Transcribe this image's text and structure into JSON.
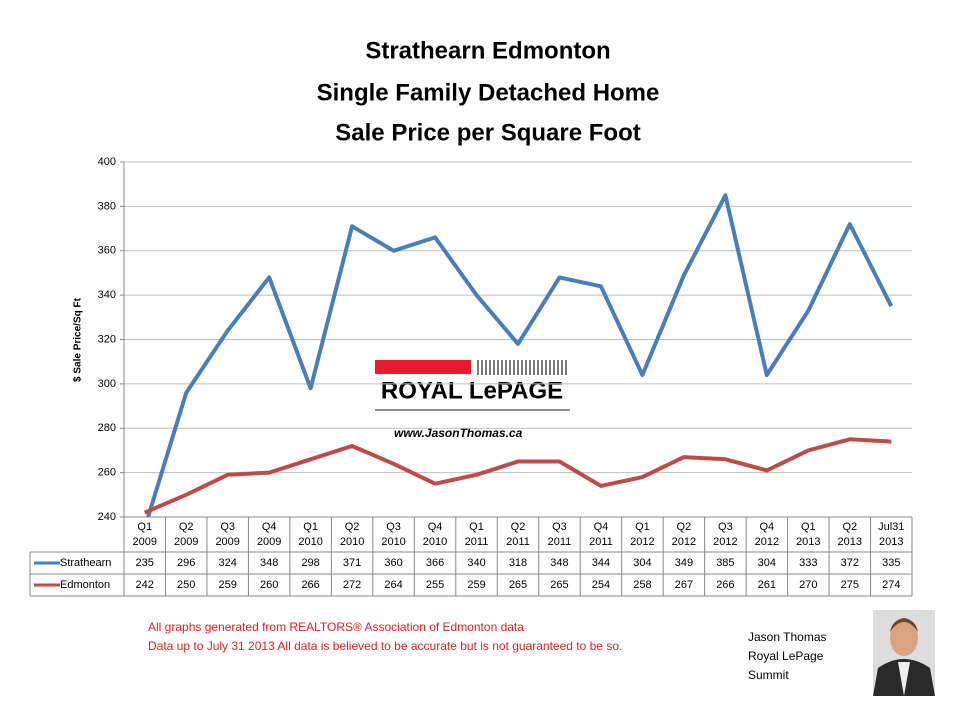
{
  "chart_data": {
    "type": "line",
    "title": [
      "Strathearn Edmonton",
      "Single Family Detached Home",
      "Sale Price per Square Foot"
    ],
    "y_label": "$ Sale Price/Sq Ft",
    "categories": [
      [
        "Q1",
        "2009"
      ],
      [
        "Q2",
        "2009"
      ],
      [
        "Q3",
        "2009"
      ],
      [
        "Q4",
        "2009"
      ],
      [
        "Q1",
        "2010"
      ],
      [
        "Q2",
        "2010"
      ],
      [
        "Q3",
        "2010"
      ],
      [
        "Q4",
        "2010"
      ],
      [
        "Q1",
        "2011"
      ],
      [
        "Q2",
        "2011"
      ],
      [
        "Q3",
        "2011"
      ],
      [
        "Q4",
        "2011"
      ],
      [
        "Q1",
        "2012"
      ],
      [
        "Q2",
        "2012"
      ],
      [
        "Q3",
        "2012"
      ],
      [
        "Q4",
        "2012"
      ],
      [
        "Q1",
        "2013"
      ],
      [
        "Q2",
        "2013"
      ],
      [
        "Jul31",
        "2013"
      ]
    ],
    "series": [
      {
        "name": "Strathearn",
        "color": "#4a7ebb",
        "values": [
          235,
          296,
          324,
          348,
          298,
          371,
          360,
          366,
          340,
          318,
          348,
          344,
          304,
          349,
          385,
          304,
          333,
          372,
          335
        ]
      },
      {
        "name": "Edmonton",
        "color": "#be4b48",
        "values": [
          242,
          250,
          259,
          260,
          266,
          272,
          264,
          255,
          259,
          265,
          265,
          254,
          258,
          267,
          266,
          261,
          270,
          275,
          274
        ]
      }
    ],
    "ylim": [
      240,
      400
    ],
    "yticks": [
      240,
      260,
      280,
      300,
      320,
      340,
      360,
      380,
      400
    ],
    "grid": true,
    "watermark": {
      "brand": "ROYAL LePAGE",
      "url": "www.JasonThomas.ca"
    },
    "notes": [
      "All graphs generated from REALTORS® Association of Edmonton data",
      "Data up to  July 31 2013  All data is believed to be accurate but is not guaranteed to be so."
    ],
    "author": [
      "Jason Thomas",
      "Royal LePage",
      "Summit"
    ]
  }
}
